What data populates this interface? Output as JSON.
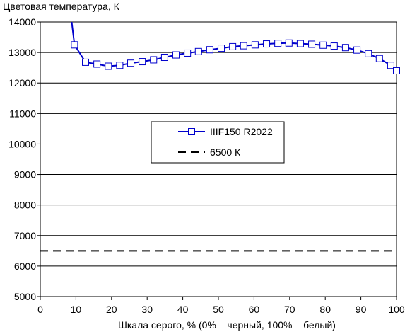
{
  "chart_data": {
    "type": "line",
    "ylabel": "Цветовая температура, К",
    "xlabel": "Шкала серого, % (0% – черный, 100% – белый)",
    "xlim": [
      0,
      100
    ],
    "ylim": [
      5000,
      14000
    ],
    "x_ticks": [
      0,
      10,
      20,
      30,
      40,
      50,
      60,
      70,
      80,
      90,
      100
    ],
    "y_ticks": [
      5000,
      6000,
      7000,
      8000,
      9000,
      10000,
      11000,
      12000,
      13000,
      14000
    ],
    "grid": "horizontal",
    "legend_position": "center",
    "series": [
      {
        "name": "IIIF150 R2022",
        "color": "#0000cc",
        "marker": "square",
        "line_style": "solid",
        "clipped_start": {
          "x": 8.3,
          "y": 14500
        },
        "x": [
          9.6,
          12.7,
          15.9,
          19.1,
          22.3,
          25.4,
          28.6,
          31.8,
          34.9,
          38.1,
          41.3,
          44.4,
          47.6,
          50.8,
          54.0,
          57.1,
          60.3,
          63.5,
          66.7,
          69.8,
          73.0,
          76.2,
          79.4,
          82.5,
          85.7,
          88.9,
          92.1,
          95.2,
          98.4,
          100
        ],
        "y": [
          13250,
          12680,
          12620,
          12550,
          12580,
          12650,
          12700,
          12760,
          12840,
          12920,
          12980,
          13030,
          13090,
          13140,
          13190,
          13220,
          13250,
          13280,
          13300,
          13310,
          13290,
          13270,
          13240,
          13210,
          13160,
          13080,
          12960,
          12800,
          12580,
          12400
        ]
      },
      {
        "name": "6500 К",
        "color": "#000000",
        "line_style": "dashed",
        "x": [
          0,
          100
        ],
        "y": [
          6500,
          6500
        ]
      }
    ]
  }
}
